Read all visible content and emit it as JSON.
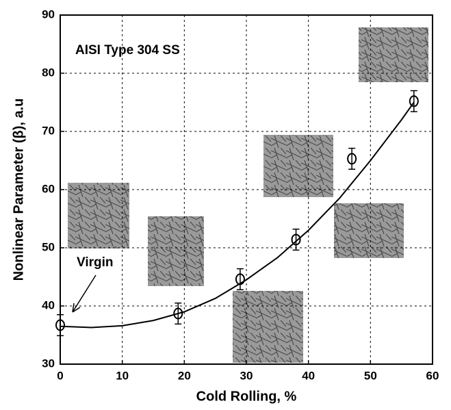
{
  "chart_data": {
    "type": "scatter",
    "xlabel": "Cold Rolling, %",
    "ylabel": "Nonlinear Parameter  (β), a.u",
    "annotations": [
      "AISI Type 304 SS",
      "Virgin"
    ],
    "series": [
      {
        "color": "#000000",
        "x": [
          0,
          19,
          29,
          38,
          47,
          57
        ],
        "values": [
          36.7,
          38.7,
          44.6,
          51.4,
          65.3,
          75.2
        ],
        "errors": [
          1.8,
          1.8,
          1.8,
          1.8,
          1.8,
          1.8
        ]
      }
    ],
    "fit": {
      "x": [
        0,
        5,
        10,
        15,
        20,
        25,
        30,
        35,
        40,
        45,
        50,
        55,
        57
      ],
      "values": [
        36.5,
        36.3,
        36.6,
        37.5,
        39,
        41.3,
        44.5,
        48.3,
        53,
        58.5,
        65,
        72,
        75
      ]
    },
    "xlim": [
      0,
      60
    ],
    "xticks": [
      0,
      10,
      20,
      30,
      40,
      50,
      60
    ],
    "ylim": [
      30,
      90
    ],
    "yticks": [
      30,
      40,
      50,
      60,
      70,
      80,
      90
    ],
    "grid": true
  }
}
